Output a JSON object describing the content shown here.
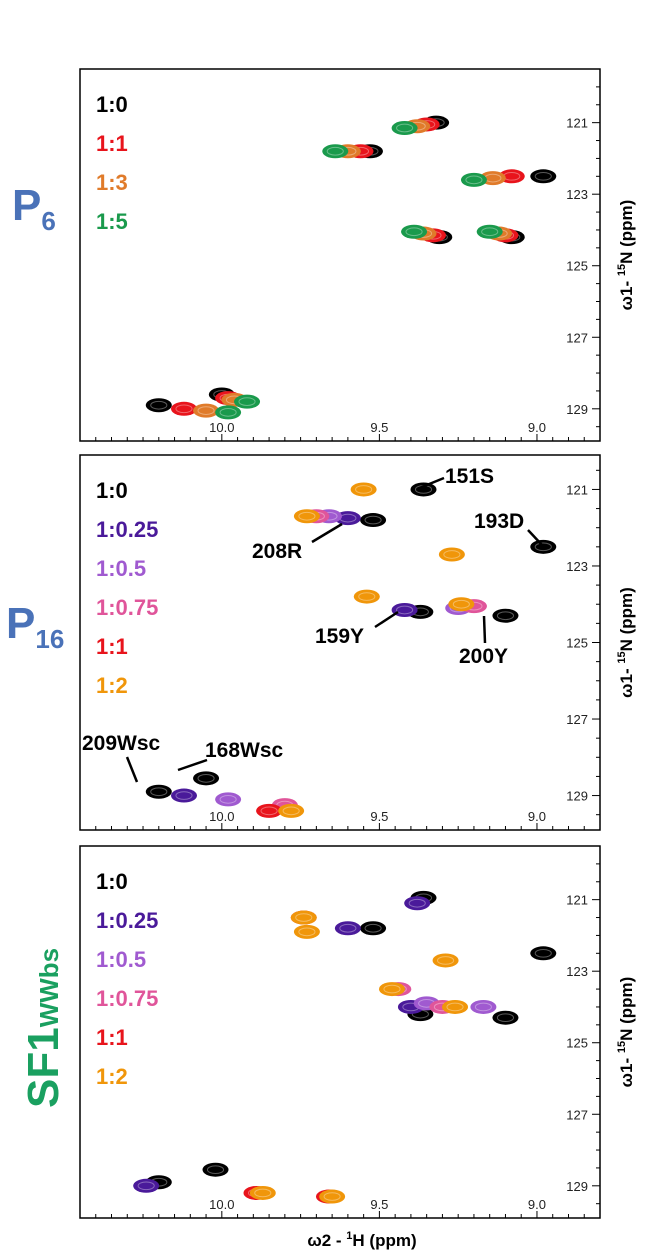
{
  "x_axis_title": {
    "prefix": "ω2 - ",
    "sup": "1",
    "suffix": "H (ppm)"
  },
  "y_axis_title": {
    "prefix": "ω1- ",
    "sup": "15",
    "suffix": "N (ppm)"
  },
  "chart_data": [
    {
      "type": "scatter",
      "panel_label": {
        "main": "P",
        "sub": "6",
        "color": "#4a72b8"
      },
      "xlim": [
        10.45,
        8.8
      ],
      "ylim": [
        129.9,
        119.5
      ],
      "x_ticks": [
        "10.0",
        "9.5",
        "9.0"
      ],
      "x_tick_values": [
        10.0,
        9.5,
        9.0
      ],
      "y_ticks": [
        "121",
        "123",
        "125",
        "127",
        "129"
      ],
      "y_tick_values": [
        121,
        123,
        125,
        127,
        129
      ],
      "legend": [
        {
          "label": "1:0",
          "color": "#000000"
        },
        {
          "label": "1:1",
          "color": "#e8141c"
        },
        {
          "label": "1:3",
          "color": "#e07b2a"
        },
        {
          "label": "1:5",
          "color": "#1a9a4c"
        }
      ],
      "series": [
        {
          "name": "1:0",
          "color": "#000000",
          "points": [
            [
              9.32,
              121.0
            ],
            [
              9.53,
              121.8
            ],
            [
              9.31,
              124.2
            ],
            [
              9.08,
              124.2
            ],
            [
              8.98,
              122.5
            ],
            [
              10.2,
              128.9
            ],
            [
              10.0,
              128.6
            ]
          ]
        },
        {
          "name": "1:1",
          "color": "#e8141c",
          "points": [
            [
              9.35,
              121.05
            ],
            [
              9.56,
              121.8
            ],
            [
              9.33,
              124.15
            ],
            [
              9.1,
              124.15
            ],
            [
              9.08,
              122.5
            ],
            [
              10.12,
              129.0
            ],
            [
              9.98,
              128.7
            ]
          ]
        },
        {
          "name": "1:3",
          "color": "#e07b2a",
          "points": [
            [
              9.38,
              121.1
            ],
            [
              9.6,
              121.8
            ],
            [
              9.36,
              124.1
            ],
            [
              9.12,
              124.1
            ],
            [
              9.14,
              122.55
            ],
            [
              10.05,
              129.05
            ],
            [
              9.96,
              128.75
            ]
          ]
        },
        {
          "name": "1:5",
          "color": "#1a9a4c",
          "points": [
            [
              9.42,
              121.15
            ],
            [
              9.64,
              121.8
            ],
            [
              9.39,
              124.05
            ],
            [
              9.15,
              124.05
            ],
            [
              9.2,
              122.6
            ],
            [
              9.98,
              129.1
            ],
            [
              9.92,
              128.8
            ]
          ]
        }
      ],
      "annotations": []
    },
    {
      "type": "scatter",
      "panel_label": {
        "main": "P",
        "sub": "16",
        "color": "#4a72b8"
      },
      "xlim": [
        10.45,
        8.8
      ],
      "ylim": [
        129.9,
        120.1
      ],
      "x_ticks": [
        "10.0",
        "9.5",
        "9.0"
      ],
      "x_tick_values": [
        10.0,
        9.5,
        9.0
      ],
      "y_ticks": [
        "121",
        "123",
        "125",
        "127",
        "129"
      ],
      "y_tick_values": [
        121,
        123,
        125,
        127,
        129
      ],
      "legend": [
        {
          "label": "1:0",
          "color": "#000000"
        },
        {
          "label": "1:0.25",
          "color": "#4a1a9a"
        },
        {
          "label": "1:0.5",
          "color": "#a05ad0"
        },
        {
          "label": "1:0.75",
          "color": "#e0559a"
        },
        {
          "label": "1:1",
          "color": "#e8141c"
        },
        {
          "label": "1:2",
          "color": "#f0960a"
        }
      ],
      "series": [
        {
          "name": "1:0",
          "color": "#000000",
          "points": [
            [
              9.36,
              121.0
            ],
            [
              9.52,
              121.8
            ],
            [
              8.98,
              122.5
            ],
            [
              9.37,
              124.2
            ],
            [
              9.1,
              124.3
            ],
            [
              10.2,
              128.9
            ],
            [
              10.05,
              128.55
            ]
          ]
        },
        {
          "name": "1:0.25",
          "color": "#4a1a9a",
          "points": [
            [
              9.42,
              124.15
            ],
            [
              9.6,
              121.75
            ],
            [
              10.12,
              129.0
            ]
          ]
        },
        {
          "name": "1:0.5",
          "color": "#a05ad0",
          "points": [
            [
              9.25,
              124.1
            ],
            [
              9.66,
              121.7
            ],
            [
              9.98,
              129.1
            ]
          ]
        },
        {
          "name": "1:0.75",
          "color": "#e0559a",
          "points": [
            [
              9.2,
              124.05
            ],
            [
              9.7,
              121.7
            ],
            [
              9.8,
              129.25
            ]
          ]
        },
        {
          "name": "1:1",
          "color": "#e8141c",
          "points": [
            [
              9.85,
              129.4
            ]
          ]
        },
        {
          "name": "1:2",
          "color": "#f0960a",
          "points": [
            [
              9.55,
              121.0
            ],
            [
              9.73,
              121.7
            ],
            [
              9.27,
              122.7
            ],
            [
              9.54,
              123.8
            ],
            [
              9.24,
              124.0
            ],
            [
              9.78,
              129.4
            ]
          ]
        }
      ],
      "annotations": [
        {
          "label": "151S"
        },
        {
          "label": "208R"
        },
        {
          "label": "193D"
        },
        {
          "label": "159Y"
        },
        {
          "label": "200Y"
        },
        {
          "label": "209Wsc"
        },
        {
          "label": "168Wsc"
        }
      ]
    },
    {
      "type": "scatter",
      "panel_label": {
        "main": "SF1",
        "sub": "WWbs",
        "color": "#1aa060"
      },
      "xlim": [
        10.45,
        8.8
      ],
      "ylim": [
        129.9,
        119.5
      ],
      "x_ticks": [
        "10.0",
        "9.5",
        "9.0"
      ],
      "x_tick_values": [
        10.0,
        9.5,
        9.0
      ],
      "y_ticks": [
        "121",
        "123",
        "125",
        "127",
        "129"
      ],
      "y_tick_values": [
        121,
        123,
        125,
        127,
        129
      ],
      "legend": [
        {
          "label": "1:0",
          "color": "#000000"
        },
        {
          "label": "1:0.25",
          "color": "#4a1a9a"
        },
        {
          "label": "1:0.5",
          "color": "#a05ad0"
        },
        {
          "label": "1:0.75",
          "color": "#e0559a"
        },
        {
          "label": "1:1",
          "color": "#e8141c"
        },
        {
          "label": "1:2",
          "color": "#f0960a"
        }
      ],
      "series": [
        {
          "name": "1:0",
          "color": "#000000",
          "points": [
            [
              9.36,
              120.95
            ],
            [
              9.52,
              121.8
            ],
            [
              8.98,
              122.5
            ],
            [
              9.37,
              124.2
            ],
            [
              9.1,
              124.3
            ],
            [
              10.2,
              128.9
            ],
            [
              10.02,
              128.55
            ]
          ]
        },
        {
          "name": "1:0.25",
          "color": "#4a1a9a",
          "points": [
            [
              9.38,
              121.1
            ],
            [
              9.6,
              121.8
            ],
            [
              9.4,
              124.0
            ],
            [
              10.24,
              129.0
            ]
          ]
        },
        {
          "name": "1:0.5",
          "color": "#a05ad0",
          "points": [
            [
              9.35,
              123.9
            ],
            [
              9.17,
              124.0
            ]
          ]
        },
        {
          "name": "1:0.75",
          "color": "#e0559a",
          "points": [
            [
              9.44,
              123.5
            ],
            [
              9.3,
              124.0
            ]
          ]
        },
        {
          "name": "1:1",
          "color": "#e8141c",
          "points": [
            [
              9.74,
              121.5
            ],
            [
              9.89,
              129.2
            ],
            [
              9.66,
              129.3
            ]
          ]
        },
        {
          "name": "1:2",
          "color": "#f0960a",
          "points": [
            [
              9.74,
              121.5
            ],
            [
              9.73,
              121.9
            ],
            [
              9.29,
              122.7
            ],
            [
              9.46,
              123.5
            ],
            [
              9.26,
              124.0
            ],
            [
              9.87,
              129.2
            ],
            [
              9.65,
              129.3
            ]
          ]
        }
      ],
      "annotations": []
    }
  ]
}
